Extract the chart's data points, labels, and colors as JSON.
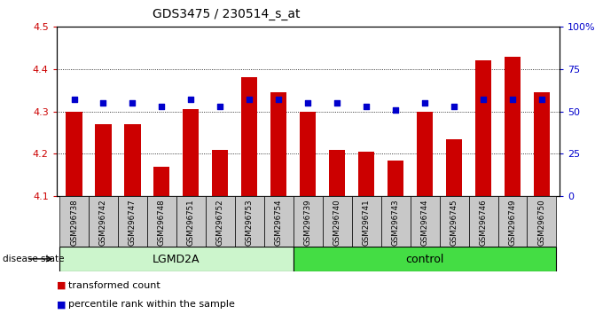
{
  "title": "GDS3475 / 230514_s_at",
  "samples": [
    "GSM296738",
    "GSM296742",
    "GSM296747",
    "GSM296748",
    "GSM296751",
    "GSM296752",
    "GSM296753",
    "GSM296754",
    "GSM296739",
    "GSM296740",
    "GSM296741",
    "GSM296743",
    "GSM296744",
    "GSM296745",
    "GSM296746",
    "GSM296749",
    "GSM296750"
  ],
  "bar_values": [
    4.3,
    4.27,
    4.27,
    4.17,
    4.305,
    4.21,
    4.38,
    4.345,
    4.3,
    4.21,
    4.205,
    4.185,
    4.3,
    4.235,
    4.42,
    4.43,
    4.345
  ],
  "pct_values": [
    57,
    55,
    55,
    53,
    57,
    53,
    57,
    57,
    55,
    55,
    53,
    51,
    55,
    53,
    57,
    57,
    57
  ],
  "groups": [
    "LGMD2A",
    "LGMD2A",
    "LGMD2A",
    "LGMD2A",
    "LGMD2A",
    "LGMD2A",
    "LGMD2A",
    "LGMD2A",
    "control",
    "control",
    "control",
    "control",
    "control",
    "control",
    "control",
    "control",
    "control"
  ],
  "ylim_left": [
    4.1,
    4.5
  ],
  "ylim_right": [
    0,
    100
  ],
  "yticks_left": [
    4.1,
    4.2,
    4.3,
    4.4,
    4.5
  ],
  "yticks_right": [
    0,
    25,
    50,
    75,
    100
  ],
  "bar_color": "#CC0000",
  "pct_color": "#0000CC",
  "bar_width": 0.55,
  "label_color_left": "#CC0000",
  "label_color_right": "#0000CC",
  "legend_bar_label": "transformed count",
  "legend_pct_label": "percentile rank within the sample",
  "disease_state_label": "disease state",
  "lgmd2a_split": 8,
  "lgmd2a_color": "#ccf5cc",
  "control_color": "#44dd44",
  "sample_box_color": "#c8c8c8"
}
